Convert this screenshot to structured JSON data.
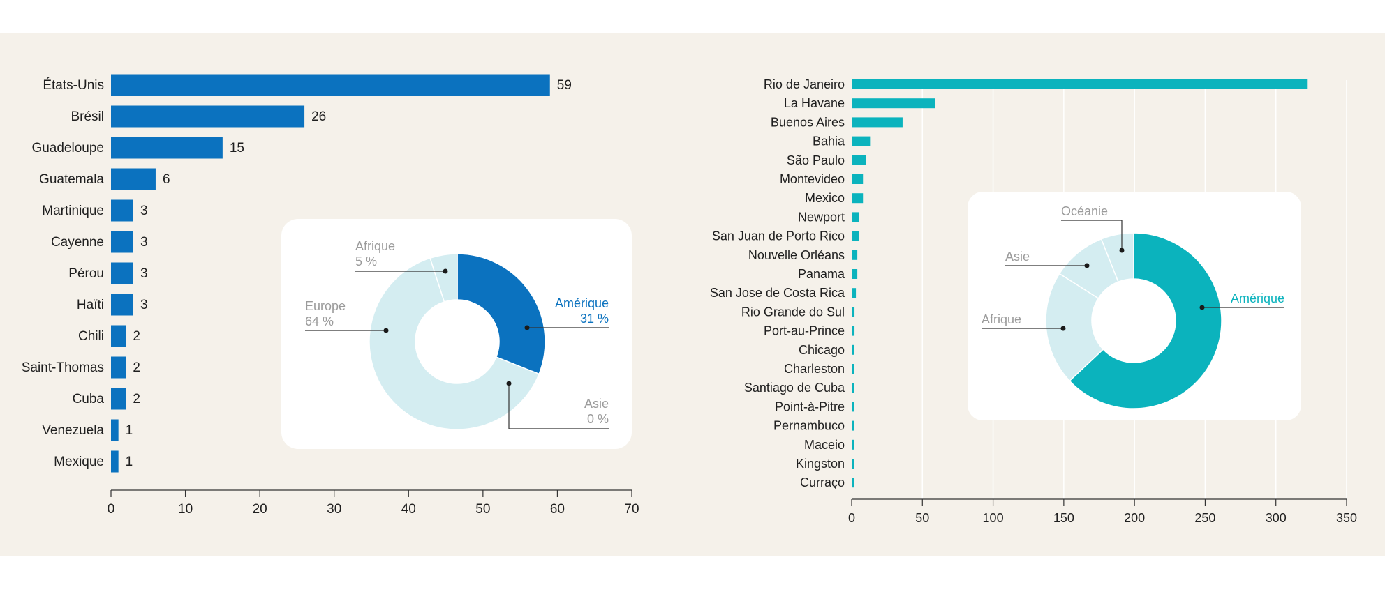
{
  "colors": {
    "panel_bg": "#f5f1ea",
    "blue": "#0b72bf",
    "teal": "#0bb3bd",
    "light": "#d4edf1",
    "grey_text": "#9b9b9b",
    "dark_text": "#1f1f1f",
    "axis": "#333333",
    "grid": "#ffffff",
    "card": "#ffffff"
  },
  "chart_data": [
    {
      "type": "bar",
      "orientation": "horizontal",
      "categories": [
        "États-Unis",
        "Brésil",
        "Guadeloupe",
        "Guatemala",
        "Martinique",
        "Cayenne",
        "Pérou",
        "Haïti",
        "Chili",
        "Saint-Thomas",
        "Cuba",
        "Venezuela",
        "Mexique"
      ],
      "values": [
        59,
        26,
        15,
        6,
        3,
        3,
        3,
        3,
        2,
        2,
        2,
        1,
        1
      ],
      "value_labels": [
        "59",
        "26",
        "15",
        "6",
        "3",
        "3",
        "3",
        "3",
        "2",
        "2",
        "2",
        "1",
        "1"
      ],
      "xlim": [
        0,
        70
      ],
      "xticks": [
        0,
        10,
        20,
        30,
        40,
        50,
        60,
        70
      ],
      "xtick_labels": [
        "0",
        "10",
        "20",
        "30",
        "40",
        "50",
        "60",
        "70"
      ],
      "grid": false,
      "title": "",
      "xlabel": "",
      "ylabel": ""
    },
    {
      "type": "pie",
      "style": "donut",
      "slices": [
        {
          "label": "Amérique",
          "pct_label": "31 %",
          "value": 31
        },
        {
          "label": "Asie",
          "pct_label": "0 %",
          "value": 0
        },
        {
          "label": "Europe",
          "pct_label": "64 %",
          "value": 64
        },
        {
          "label": "Afrique",
          "pct_label": "5 %",
          "value": 5
        }
      ]
    },
    {
      "type": "bar",
      "orientation": "horizontal",
      "categories": [
        "Rio de Janeiro",
        "La Havane",
        "Buenos Aires",
        "Bahia",
        "São Paulo",
        "Montevideo",
        "Mexico",
        "Newport",
        "San Juan de Porto Rico",
        "Nouvelle Orléans",
        "Panama",
        "San Jose de Costa Rica",
        "Rio Grande do Sul",
        "Port-au-Prince",
        "Chicago",
        "Charleston",
        "Santiago de Cuba",
        "Point-à-Pitre",
        "Pernambuco",
        "Maceio",
        "Kingston",
        "Curraço"
      ],
      "values": [
        322,
        59,
        36,
        13,
        10,
        8,
        8,
        5,
        5,
        4,
        4,
        3,
        2,
        2,
        1,
        1,
        1,
        1,
        1,
        1,
        1,
        1
      ],
      "xlim": [
        0,
        350
      ],
      "xticks": [
        0,
        50,
        100,
        150,
        200,
        250,
        300,
        350
      ],
      "xtick_labels": [
        "0",
        "50",
        "100",
        "150",
        "200",
        "250",
        "300",
        "350"
      ],
      "grid": true,
      "title": "",
      "xlabel": "",
      "ylabel": ""
    },
    {
      "type": "pie",
      "style": "donut",
      "slices": [
        {
          "label": "Amérique",
          "value": 63
        },
        {
          "label": "Afrique",
          "value": 21
        },
        {
          "label": "Asie",
          "value": 10
        },
        {
          "label": "Océanie",
          "value": 6
        }
      ]
    }
  ]
}
